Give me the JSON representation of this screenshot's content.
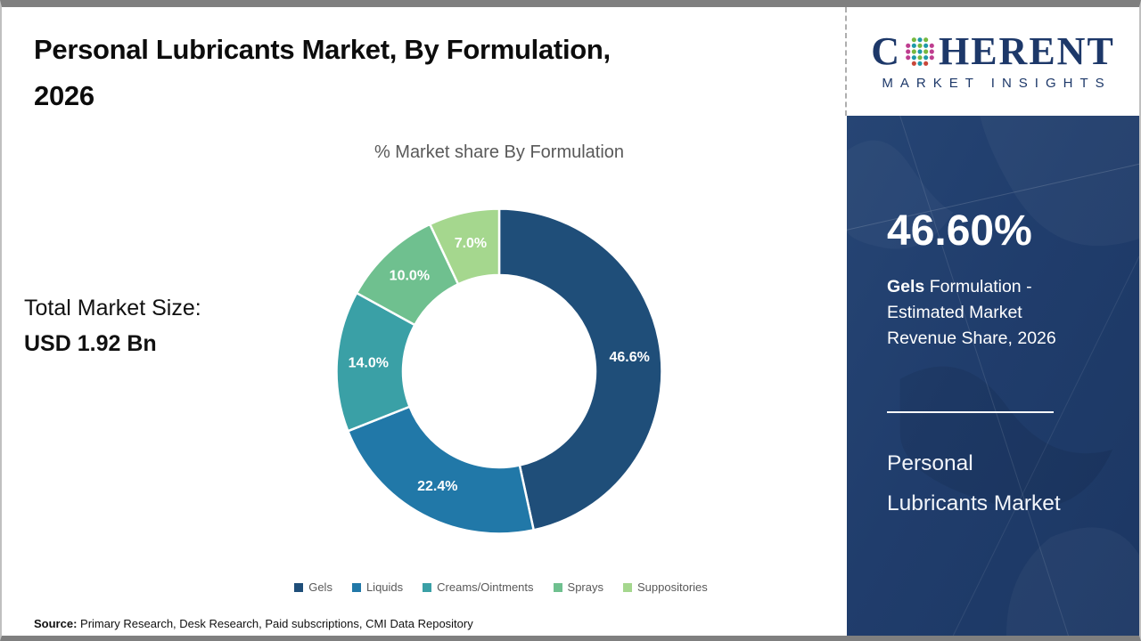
{
  "header": {
    "lines": [
      "Personal Lubricants Market, By Formulation,",
      "2026"
    ]
  },
  "logo": {
    "brand_first": "C",
    "brand_rest": "HERENT",
    "tagline": "MARKET INSIGHTS",
    "navy": "#1d3869"
  },
  "left_stats": {
    "total_label": "Total Market Size:",
    "total_value": "USD 1.92 Bn"
  },
  "chart_data": {
    "type": "pie",
    "subtype": "donut",
    "title": "% Market share By Formulation",
    "categories": [
      "Gels",
      "Liquids",
      "Creams/Ointments",
      "Sprays",
      "Suppositories"
    ],
    "values": [
      46.6,
      22.4,
      14.0,
      10.0,
      7.0
    ],
    "labels": [
      "46.6%",
      "22.4%",
      "14.0%",
      "10.0%",
      "7.0%"
    ],
    "colors": [
      "#1F4E79",
      "#2178A8",
      "#3AA0A6",
      "#6FC08F",
      "#A5D78E"
    ],
    "start_angle_deg": 0,
    "direction": "clockwise",
    "legend_position": "bottom"
  },
  "side_panel": {
    "headline": "46.60%",
    "sub_bold": "Gels",
    "sub_rest": " Formulation - Estimated Market Revenue Share, 2026",
    "market_title": "Personal Lubricants Market",
    "bg_color": "#203d6c"
  },
  "source": {
    "label": "Source:",
    "text": " Primary Research, Desk Research, Paid subscriptions, CMI Data Repository"
  }
}
